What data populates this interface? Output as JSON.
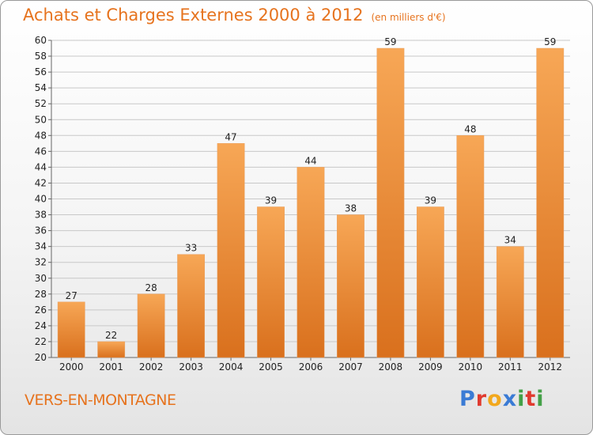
{
  "header": {
    "title": "Achats et Charges Externes 2000 à 2012",
    "unit": "(en milliers d'€)"
  },
  "footer": {
    "town": "VERS-EN-MONTAGNE",
    "logo": {
      "letters": [
        "P",
        "r",
        "o",
        "x",
        "i",
        "t",
        "i"
      ],
      "colors": [
        "#3a7bd5",
        "#e03a2f",
        "#f2a81d",
        "#3a7bd5",
        "#43a047",
        "#e03a2f",
        "#43a047"
      ]
    }
  },
  "colors": {
    "accent": "#e6731e",
    "bar_light": "#f7a756",
    "bar_dark": "#d9701d",
    "grid": "#c8c8c8"
  },
  "chart_data": {
    "type": "bar",
    "title": "Achats et Charges Externes 2000 à 2012",
    "subtitle": "(en milliers d'€)",
    "xlabel": "",
    "ylabel": "",
    "categories": [
      "2000",
      "2001",
      "2002",
      "2003",
      "2004",
      "2005",
      "2006",
      "2007",
      "2008",
      "2009",
      "2010",
      "2011",
      "2012"
    ],
    "values": [
      27,
      22,
      28,
      33,
      47,
      39,
      44,
      38,
      59,
      39,
      48,
      34,
      59
    ],
    "ylim": [
      20,
      60
    ],
    "ytick_step": 2,
    "grid": true,
    "legend": "none"
  }
}
